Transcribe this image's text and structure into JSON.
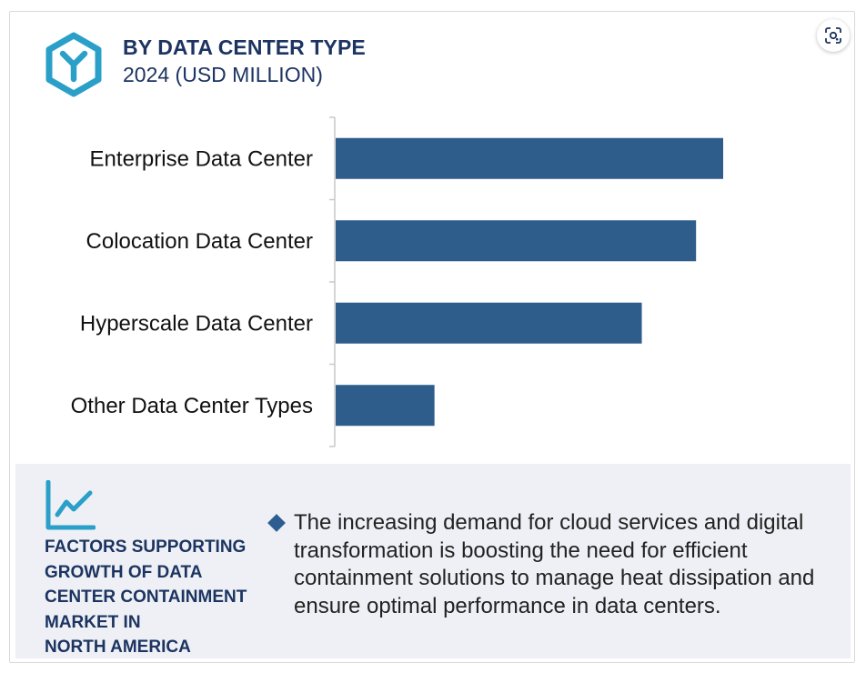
{
  "header": {
    "title": "BY DATA CENTER TYPE",
    "subtitle": "2024 (USD MILLION)"
  },
  "chart_data": {
    "type": "bar",
    "orientation": "horizontal",
    "categories": [
      "Enterprise Data Center",
      "Colocation Data Center",
      "Hyperscale Data Center",
      "Other Data Center Types"
    ],
    "values": [
      100,
      93,
      79,
      25.5
    ],
    "xlim": [
      0,
      100
    ],
    "grid": false,
    "legend": "none",
    "bar_color": "#2e5d8c"
  },
  "factors": {
    "lines": [
      "FACTORS SUPPORTING",
      "GROWTH OF DATA",
      "CENTER CONTAINMENT",
      "MARKET IN",
      "NORTH AMERICA"
    ],
    "description": "The increasing demand for cloud services and digital transformation is boosting the need for efficient containment solutions to manage heat dissipation and ensure optimal performance in data centers."
  },
  "icons": {
    "logo": "hexagon-y-logo",
    "lens": "lens-search-icon",
    "trend": "trend-chart-icon",
    "bullet": "diamond-bullet-icon"
  },
  "colors": {
    "accent": "#2aa0c8",
    "navy": "#1c3461",
    "bar": "#2e5d8c",
    "panel": "#eef0f5"
  }
}
